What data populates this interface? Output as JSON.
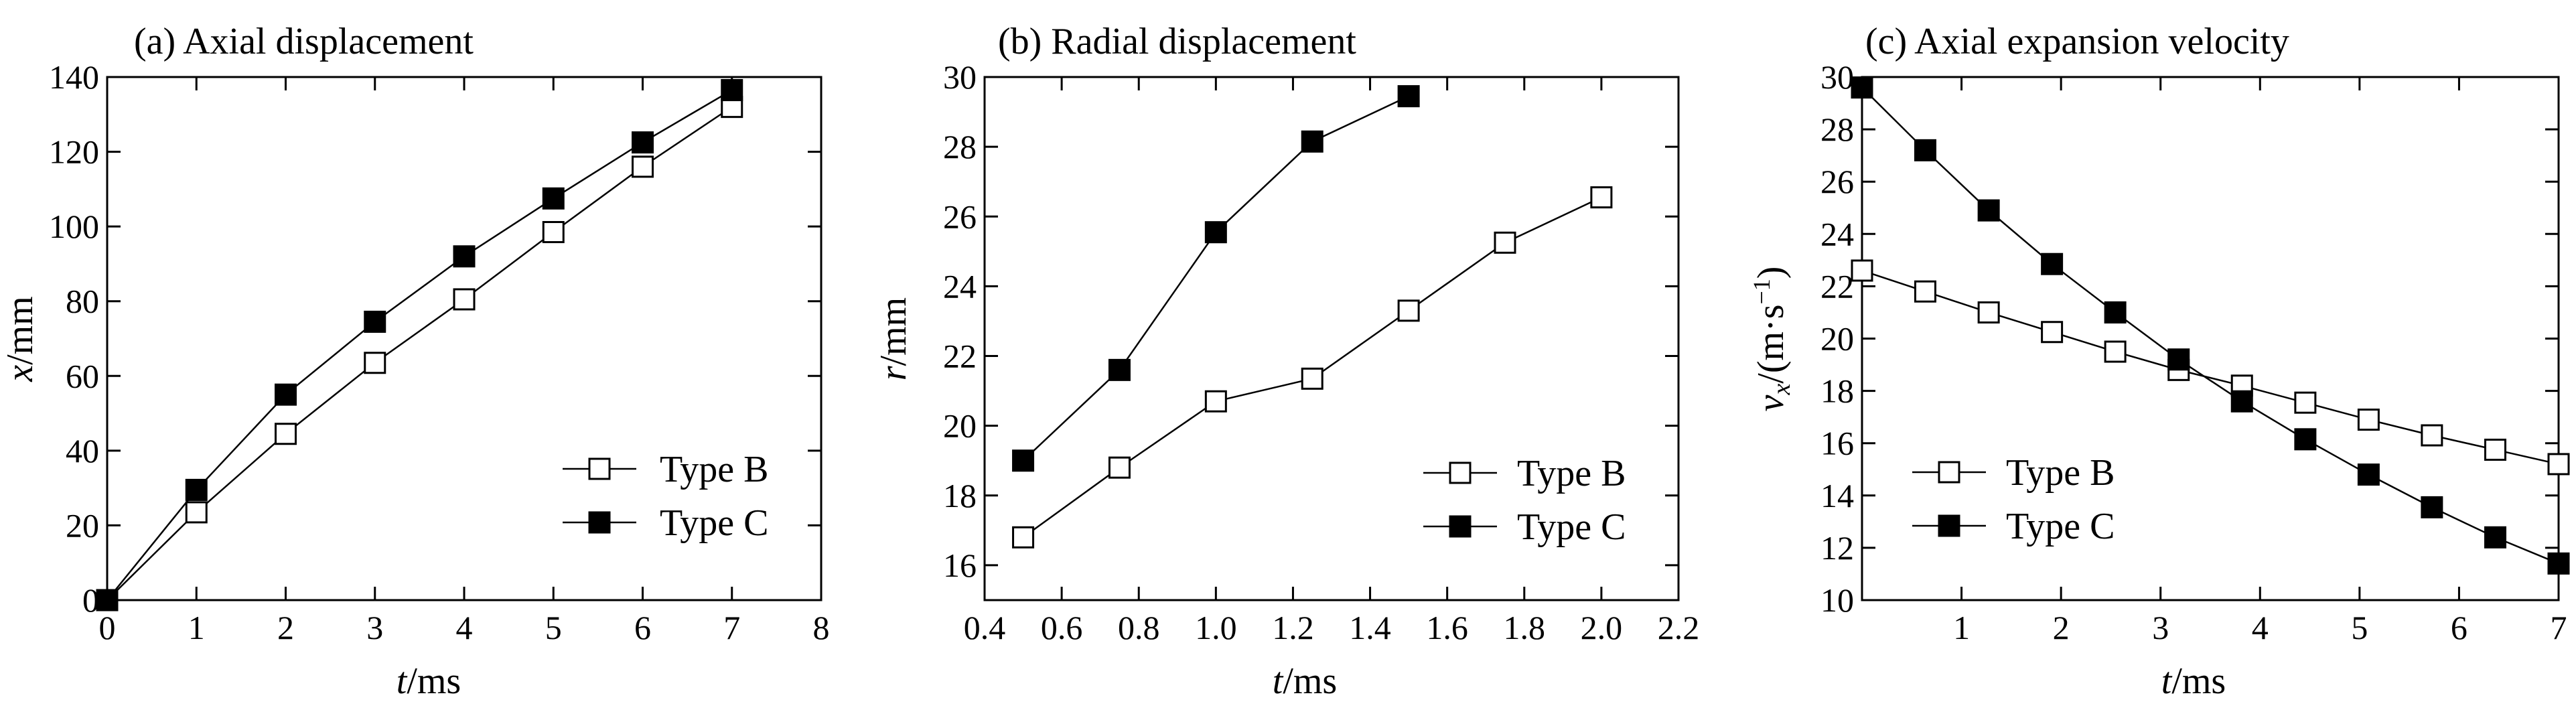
{
  "chart_data": [
    {
      "type": "line",
      "title": "(a) Axial displacement",
      "xlabel_var": "t",
      "xlabel_unit": "/ms",
      "ylabel_var": "x",
      "ylabel_unit": "/mm",
      "xlim": [
        0,
        8
      ],
      "ylim": [
        0,
        140
      ],
      "xticks": [
        0,
        1,
        2,
        3,
        4,
        5,
        6,
        7,
        8
      ],
      "xtick_labels": [
        "0",
        "1",
        "2",
        "3",
        "4",
        "5",
        "6",
        "7",
        "8"
      ],
      "yticks": [
        0,
        20,
        40,
        60,
        80,
        100,
        120,
        140
      ],
      "ytick_labels": [
        "0",
        "20",
        "40",
        "60",
        "80",
        "100",
        "120",
        "140"
      ],
      "legend_position": "bottom-right",
      "grid": false,
      "series": [
        {
          "name": "Type B",
          "marker": "open-square",
          "x": [
            0,
            1,
            2,
            3,
            4,
            5,
            6,
            7
          ],
          "y": [
            0,
            23.5,
            44.5,
            63.5,
            80.5,
            98.5,
            116,
            132
          ]
        },
        {
          "name": "Type C",
          "marker": "filled-square",
          "x": [
            0,
            1,
            2,
            3,
            4,
            5,
            6,
            7
          ],
          "y": [
            0,
            29.5,
            55,
            74.5,
            92,
            107.5,
            122.5,
            136.5
          ]
        }
      ]
    },
    {
      "type": "line",
      "title": "(b) Radial displacement",
      "xlabel_var": "t",
      "xlabel_unit": "/ms",
      "ylabel_var": "r",
      "ylabel_unit": "/mm",
      "xlim": [
        0.4,
        2.2
      ],
      "ylim": [
        15,
        30
      ],
      "xticks": [
        0.4,
        0.6,
        0.8,
        1.0,
        1.2,
        1.4,
        1.6,
        1.8,
        2.0,
        2.2
      ],
      "xtick_labels": [
        "0.4",
        "0.6",
        "0.8",
        "1.0",
        "1.2",
        "1.4",
        "1.6",
        "1.8",
        "2.0",
        "2.2"
      ],
      "yticks": [
        16,
        18,
        20,
        22,
        24,
        26,
        28,
        30
      ],
      "ytick_labels": [
        "16",
        "18",
        "20",
        "22",
        "24",
        "26",
        "28",
        "30"
      ],
      "legend_position": "bottom-right",
      "grid": false,
      "series": [
        {
          "name": "Type B",
          "marker": "open-square",
          "x": [
            0.5,
            0.75,
            1.0,
            1.25,
            1.5,
            1.75,
            2.0
          ],
          "y": [
            16.8,
            18.8,
            20.7,
            21.35,
            23.3,
            25.25,
            26.55
          ]
        },
        {
          "name": "Type C",
          "marker": "filled-square",
          "x": [
            0.5,
            0.75,
            1.0,
            1.25,
            1.5
          ],
          "y": [
            19.0,
            21.6,
            25.55,
            28.15,
            29.45
          ]
        }
      ]
    },
    {
      "type": "line",
      "title": "(c) Axial expansion velocity",
      "xlabel_var": "t",
      "xlabel_unit": "/ms",
      "ylabel_var": "v",
      "ylabel_sub": "x",
      "ylabel_unit": "/(m·s",
      "ylabel_sup": "−1",
      "ylabel_close": ")",
      "xlim": [
        0,
        7
      ],
      "ylim": [
        10,
        30
      ],
      "xticks": [
        1,
        2,
        3,
        4,
        5,
        6,
        7
      ],
      "xtick_labels": [
        "1",
        "2",
        "3",
        "4",
        "5",
        "6",
        "7"
      ],
      "yticks": [
        10,
        12,
        14,
        16,
        18,
        20,
        22,
        24,
        26,
        28,
        30
      ],
      "ytick_labels": [
        "10",
        "12",
        "14",
        "16",
        "18",
        "20",
        "22",
        "24",
        "26",
        "28",
        "30"
      ],
      "legend_position": "center-left",
      "grid": false,
      "series": [
        {
          "name": "Type B",
          "marker": "open-square",
          "x": [
            0,
            0.636,
            1.273,
            1.909,
            2.545,
            3.182,
            3.818,
            4.455,
            5.091,
            5.727,
            6.364,
            7.0
          ],
          "y": [
            22.6,
            21.8,
            21.0,
            20.25,
            19.5,
            18.8,
            18.2,
            17.55,
            16.9,
            16.3,
            15.75,
            15.2
          ]
        },
        {
          "name": "Type C",
          "marker": "filled-square",
          "x": [
            0,
            0.636,
            1.273,
            1.909,
            2.545,
            3.182,
            3.818,
            4.455,
            5.091,
            5.727,
            6.364,
            7.0
          ],
          "y": [
            29.6,
            27.2,
            24.9,
            22.85,
            21.0,
            19.2,
            17.6,
            16.15,
            14.8,
            13.55,
            12.4,
            11.4
          ]
        }
      ]
    }
  ]
}
